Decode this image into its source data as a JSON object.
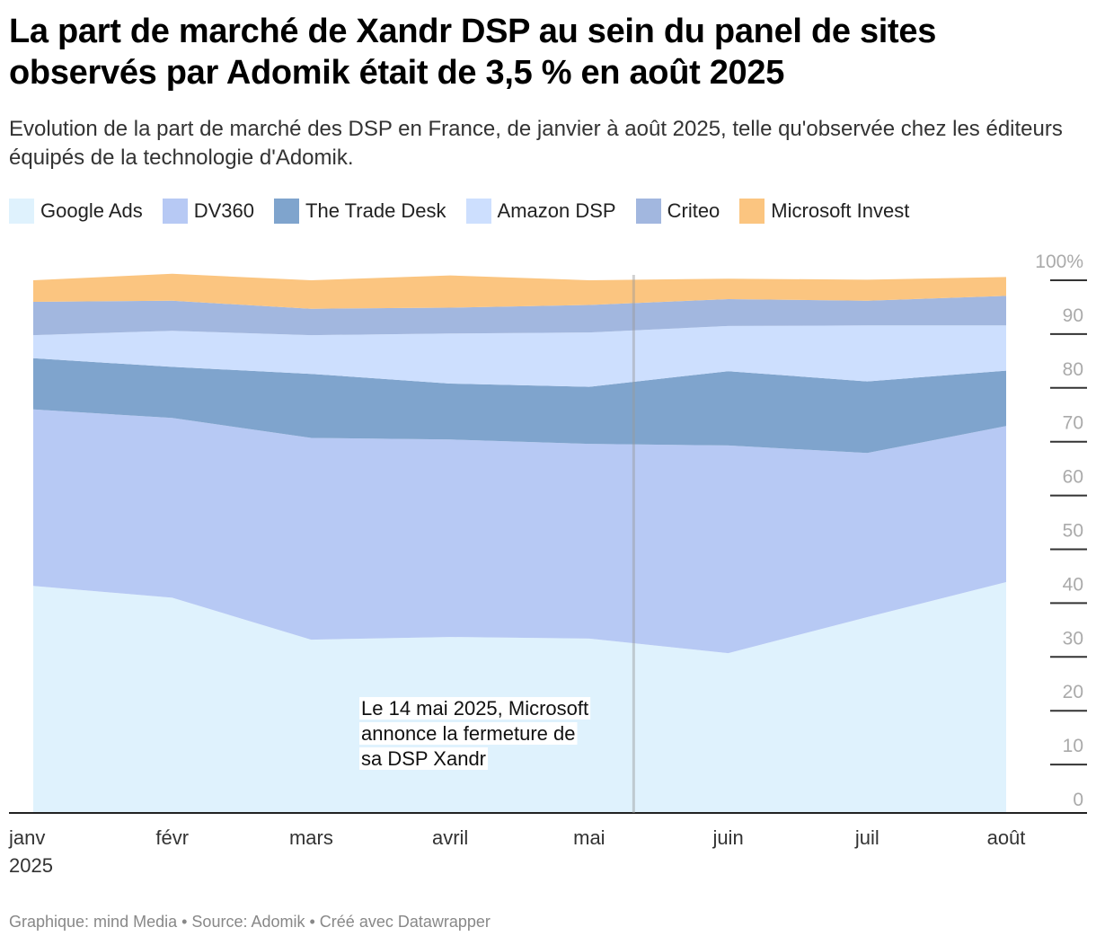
{
  "chart_data": {
    "type": "area",
    "stacked": true,
    "title": "La part de marché de Xandr DSP au sein du panel de sites observés par Adomik était de 3,5 % en août 2025",
    "subtitle": "Evolution de la part de marché des DSP en France, de janvier à août 2025, telle qu'observée chez les éditeurs équipés de la technologie d'Adomik.",
    "categories": [
      "janv",
      "févr",
      "mars",
      "avril",
      "mai",
      "juin",
      "juil",
      "août"
    ],
    "year_label": "2025",
    "ylim": [
      0,
      100
    ],
    "yticks": [
      "100%",
      "90",
      "80",
      "70",
      "60",
      "50",
      "40",
      "30",
      "20",
      "10",
      "0"
    ],
    "series": [
      {
        "name": "Google Ads",
        "color": "#dff2fd",
        "values": [
          42.2,
          40.0,
          32.2,
          32.7,
          32.4,
          29.7,
          36.4,
          42.9
        ]
      },
      {
        "name": "DV360",
        "color": "#b7c9f4",
        "values": [
          32.8,
          33.4,
          37.5,
          36.7,
          36.2,
          38.6,
          30.5,
          29.0
        ]
      },
      {
        "name": "The Trade Desk",
        "color": "#7fa4cd",
        "values": [
          9.5,
          9.5,
          11.9,
          10.4,
          10.6,
          13.8,
          13.3,
          10.3
        ]
      },
      {
        "name": "Amazon DSP",
        "color": "#cddffe",
        "values": [
          4.3,
          6.7,
          7.2,
          9.3,
          10.1,
          8.4,
          10.4,
          8.4
        ]
      },
      {
        "name": "Criteo",
        "color": "#a2b7df",
        "values": [
          6.2,
          5.6,
          4.9,
          4.8,
          5.1,
          5.0,
          4.6,
          5.5
        ]
      },
      {
        "name": "Microsoft Invest",
        "color": "#fbc580",
        "values": [
          4.0,
          5.0,
          5.3,
          6.0,
          4.6,
          3.8,
          3.9,
          3.5
        ]
      }
    ],
    "annotation": {
      "text_lines": [
        "Le 14 mai 2025, Microsoft",
        "annonce la fermeture de",
        "sa DSP Xandr"
      ],
      "x_category_position": 4.32
    }
  },
  "footer": {
    "credit": "Graphique: mind Media",
    "separator": " • ",
    "source": "Source: Adomik",
    "tool": "Créé avec Datawrapper"
  }
}
